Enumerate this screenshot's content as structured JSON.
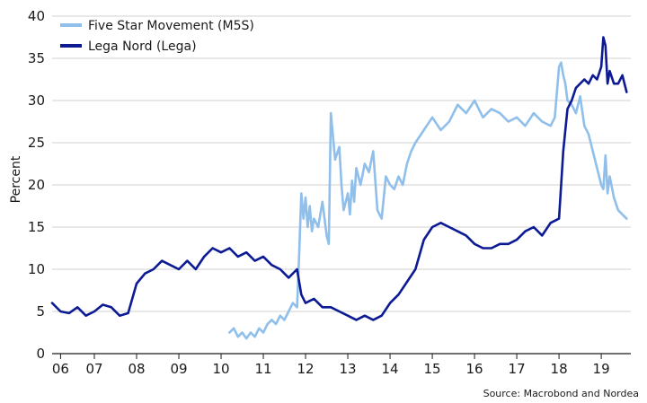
{
  "chart_data": {
    "type": "line",
    "ylabel": "Percent",
    "xlabel": "",
    "ylim": [
      0,
      40
    ],
    "xlim": [
      2006.0,
      2019.7
    ],
    "yticks": [
      0,
      5,
      10,
      15,
      20,
      25,
      30,
      35,
      40
    ],
    "xticks": [
      {
        "label": "06",
        "value": 2006.2
      },
      {
        "label": "07",
        "value": 2007.0
      },
      {
        "label": "08",
        "value": 2008.0
      },
      {
        "label": "09",
        "value": 2009.0
      },
      {
        "label": "10",
        "value": 2010.0
      },
      {
        "label": "11",
        "value": 2011.0
      },
      {
        "label": "12",
        "value": 2012.0
      },
      {
        "label": "13",
        "value": 2013.0
      },
      {
        "label": "14",
        "value": 2014.0
      },
      {
        "label": "15",
        "value": 2015.0
      },
      {
        "label": "16",
        "value": 2016.0
      },
      {
        "label": "17",
        "value": 2017.0
      },
      {
        "label": "18",
        "value": 2018.0
      },
      {
        "label": "19",
        "value": 2019.0
      }
    ],
    "grid": true,
    "legend_position": "top-left",
    "source": "Source: Macrobond and Nordea",
    "series": [
      {
        "name": "Five Star Movement (M5S)",
        "color": "#8fbfea",
        "x": [
          2010.2,
          2010.3,
          2010.4,
          2010.5,
          2010.6,
          2010.7,
          2010.8,
          2010.9,
          2011.0,
          2011.1,
          2011.2,
          2011.3,
          2011.4,
          2011.5,
          2011.6,
          2011.7,
          2011.8,
          2011.85,
          2011.9,
          2011.95,
          2012.0,
          2012.05,
          2012.1,
          2012.15,
          2012.2,
          2012.3,
          2012.4,
          2012.5,
          2012.55,
          2012.6,
          2012.7,
          2012.8,
          2012.85,
          2012.9,
          2013.0,
          2013.05,
          2013.1,
          2013.15,
          2013.2,
          2013.3,
          2013.4,
          2013.5,
          2013.6,
          2013.7,
          2013.8,
          2013.9,
          2014.0,
          2014.1,
          2014.2,
          2014.3,
          2014.4,
          2014.5,
          2014.6,
          2014.8,
          2015.0,
          2015.2,
          2015.4,
          2015.6,
          2015.8,
          2016.0,
          2016.2,
          2016.4,
          2016.6,
          2016.8,
          2017.0,
          2017.2,
          2017.4,
          2017.6,
          2017.8,
          2017.9,
          2018.0,
          2018.05,
          2018.1,
          2018.15,
          2018.2,
          2018.3,
          2018.4,
          2018.5,
          2018.6,
          2018.7,
          2018.8,
          2018.9,
          2019.0,
          2019.05,
          2019.1,
          2019.15,
          2019.2,
          2019.3,
          2019.4,
          2019.5,
          2019.6
        ],
        "y": [
          2.5,
          3.0,
          2.0,
          2.5,
          1.8,
          2.5,
          2.0,
          3.0,
          2.5,
          3.5,
          4.0,
          3.5,
          4.5,
          4.0,
          5.0,
          6.0,
          5.5,
          12.0,
          19.0,
          16.0,
          18.5,
          15.0,
          17.5,
          14.5,
          16.0,
          15.0,
          18.0,
          14.0,
          13.0,
          28.5,
          23.0,
          24.5,
          20.0,
          17.0,
          19.0,
          16.5,
          20.5,
          18.0,
          22.0,
          20.0,
          22.5,
          21.5,
          24.0,
          17.0,
          16.0,
          21.0,
          20.0,
          19.5,
          21.0,
          20.0,
          22.5,
          24.0,
          25.0,
          26.5,
          28.0,
          26.5,
          27.5,
          29.5,
          28.5,
          30.0,
          28.0,
          29.0,
          28.5,
          27.5,
          28.0,
          27.0,
          28.5,
          27.5,
          27.0,
          28.0,
          34.0,
          34.5,
          33.0,
          32.0,
          30.0,
          29.5,
          28.5,
          30.5,
          27.0,
          26.0,
          24.0,
          22.0,
          20.0,
          19.5,
          23.5,
          19.0,
          21.0,
          18.5,
          17.0,
          16.5,
          16.0
        ]
      },
      {
        "name": "Lega Nord (Lega)",
        "color": "#0c1a94",
        "x": [
          2006.0,
          2006.2,
          2006.4,
          2006.6,
          2006.8,
          2007.0,
          2007.2,
          2007.4,
          2007.6,
          2007.8,
          2008.0,
          2008.2,
          2008.4,
          2008.6,
          2008.8,
          2009.0,
          2009.2,
          2009.4,
          2009.6,
          2009.8,
          2010.0,
          2010.2,
          2010.4,
          2010.6,
          2010.8,
          2011.0,
          2011.2,
          2011.4,
          2011.6,
          2011.8,
          2011.9,
          2012.0,
          2012.2,
          2012.4,
          2012.6,
          2012.8,
          2013.0,
          2013.2,
          2013.4,
          2013.6,
          2013.8,
          2014.0,
          2014.2,
          2014.4,
          2014.6,
          2014.8,
          2015.0,
          2015.2,
          2015.4,
          2015.6,
          2015.8,
          2016.0,
          2016.2,
          2016.4,
          2016.6,
          2016.8,
          2017.0,
          2017.2,
          2017.4,
          2017.6,
          2017.8,
          2018.0,
          2018.1,
          2018.2,
          2018.3,
          2018.4,
          2018.5,
          2018.6,
          2018.7,
          2018.8,
          2018.9,
          2019.0,
          2019.05,
          2019.1,
          2019.15,
          2019.2,
          2019.3,
          2019.4,
          2019.5,
          2019.6
        ],
        "y": [
          6.0,
          5.0,
          4.8,
          5.5,
          4.5,
          5.0,
          5.8,
          5.5,
          4.5,
          4.8,
          8.3,
          9.5,
          10.0,
          11.0,
          10.5,
          10.0,
          11.0,
          10.0,
          11.5,
          12.5,
          12.0,
          12.5,
          11.5,
          12.0,
          11.0,
          11.5,
          10.5,
          10.0,
          9.0,
          10.0,
          7.0,
          6.0,
          6.5,
          5.5,
          5.5,
          5.0,
          4.5,
          4.0,
          4.5,
          4.0,
          4.5,
          6.0,
          7.0,
          8.5,
          10.0,
          13.5,
          15.0,
          15.5,
          15.0,
          14.5,
          14.0,
          13.0,
          12.5,
          12.5,
          13.0,
          13.0,
          13.5,
          14.5,
          15.0,
          14.0,
          15.5,
          16.0,
          24.0,
          29.0,
          30.0,
          31.5,
          32.0,
          32.5,
          32.0,
          33.0,
          32.5,
          34.0,
          37.5,
          36.5,
          32.0,
          33.5,
          32.0,
          32.0,
          33.0,
          31.0
        ]
      }
    ]
  }
}
